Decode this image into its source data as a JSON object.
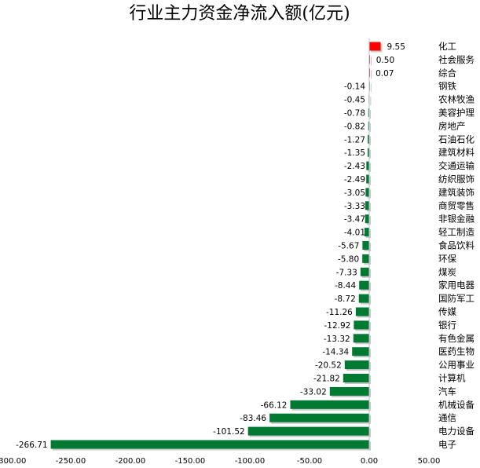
{
  "chart_data": {
    "type": "bar",
    "orientation": "horizontal",
    "title": "行业主力资金净流入额(亿元)",
    "categories": [
      "化工",
      "社会服务",
      "综合",
      "钢铁",
      "农林牧渔",
      "美容护理",
      "房地产",
      "石油石化",
      "建筑材料",
      "交通运输",
      "纺织服饰",
      "建筑装饰",
      "商贸零售",
      "非银金融",
      "轻工制造",
      "食品饮料",
      "环保",
      "煤炭",
      "家用电器",
      "国防军工",
      "传媒",
      "银行",
      "有色金属",
      "医药生物",
      "公用事业",
      "计算机",
      "汽车",
      "机械设备",
      "通信",
      "电力设备",
      "电子"
    ],
    "values": [
      9.55,
      0.5,
      0.07,
      -0.14,
      -0.45,
      -0.78,
      -0.82,
      -1.27,
      -1.35,
      -2.43,
      -2.49,
      -3.05,
      -3.33,
      -3.47,
      -4.01,
      -5.67,
      -5.8,
      -7.33,
      -8.44,
      -8.72,
      -11.26,
      -12.92,
      -13.32,
      -14.34,
      -20.52,
      -21.82,
      -33.02,
      -66.12,
      -83.46,
      -101.52,
      -266.71
    ],
    "value_labels": [
      "9.55",
      "0.50",
      "0.07",
      "-0.14",
      "-0.45",
      "-0.78",
      "-0.82",
      "-1.27",
      "-1.35",
      "-2.43",
      "-2.49",
      "-3.05",
      "-3.33",
      "-3.47",
      "-4.01",
      "-5.67",
      "-5.80",
      "-7.33",
      "-8.44",
      "-8.72",
      "-11.26",
      "-12.92",
      "-13.32",
      "-14.34",
      "-20.52",
      "-21.82",
      "-33.02",
      "-66.12",
      "-83.46",
      "-101.52",
      "-266.71"
    ],
    "xlim": [
      -300,
      50
    ],
    "xticks": [
      -300,
      -250,
      -200,
      -150,
      -100,
      -50,
      0,
      50
    ],
    "xtick_labels": [
      "-300.00",
      "-250.00",
      "-200.00",
      "-150.00",
      "-100.00",
      "-50.00",
      "0.00",
      "50.00"
    ],
    "grid": false,
    "legend": "none",
    "colors": {
      "positive": "#ff0000",
      "negative": "#007a33"
    }
  }
}
